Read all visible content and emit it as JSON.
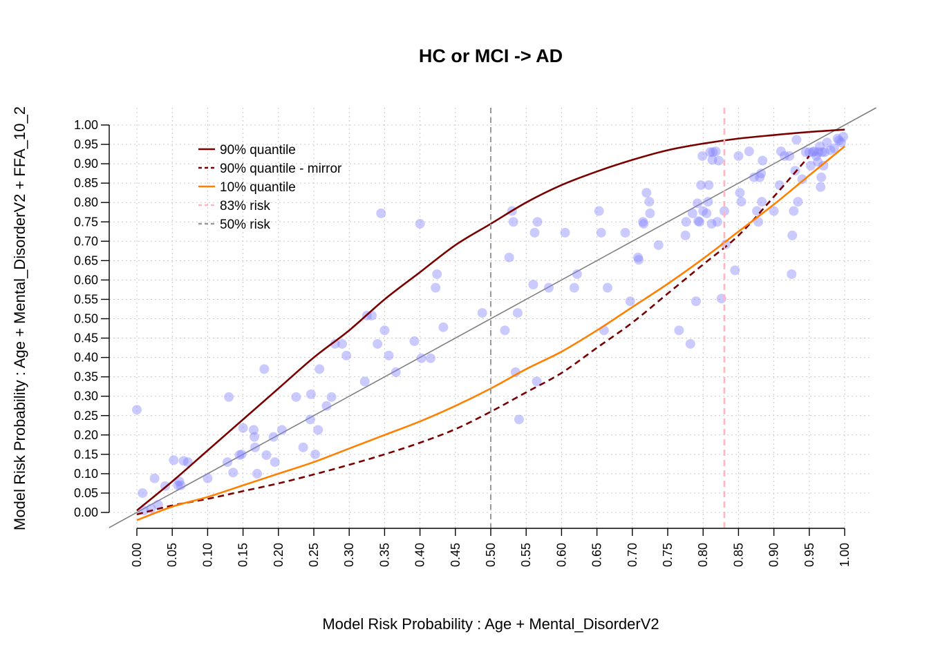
{
  "chart_data": {
    "type": "scatter",
    "title": "HC or MCI -> AD",
    "xlabel": "Model Risk Probability : Age + Mental_DisorderV2",
    "ylabel": "Model Risk Probability : Age + Mental_DisorderV2 + FFA_10_2",
    "xlim": [
      0,
      1
    ],
    "ylim": [
      0,
      1
    ],
    "x_ticks": [
      "0.00",
      "0.05",
      "0.10",
      "0.15",
      "0.20",
      "0.25",
      "0.30",
      "0.35",
      "0.40",
      "0.45",
      "0.50",
      "0.55",
      "0.60",
      "0.65",
      "0.70",
      "0.75",
      "0.80",
      "0.85",
      "0.90",
      "0.95",
      "1.00"
    ],
    "y_ticks": [
      "0.00",
      "0.05",
      "0.10",
      "0.15",
      "0.20",
      "0.25",
      "0.30",
      "0.35",
      "0.40",
      "0.45",
      "0.50",
      "0.55",
      "0.60",
      "0.65",
      "0.70",
      "0.75",
      "0.80",
      "0.85",
      "0.90",
      "0.95",
      "1.00"
    ],
    "grid": true,
    "legend_position": "top-left",
    "legend": [
      {
        "label": "90% quantile",
        "color": "#7a0000",
        "dash": "solid"
      },
      {
        "label": "90% quantile - mirror",
        "color": "#7a0000",
        "dash": "dashed"
      },
      {
        "label": "10% quantile",
        "color": "#ff8000",
        "dash": "solid"
      },
      {
        "label": "83% risk",
        "color": "#ffb6c1",
        "dash": "dashed"
      },
      {
        "label": "50% risk",
        "color": "#999999",
        "dash": "dashed"
      }
    ],
    "colors": {
      "points": "#8080ff",
      "q90": "#7a0000",
      "q10": "#ff8000",
      "identity": "#808080",
      "risk83": "#ffb6c1",
      "risk50": "#999999"
    },
    "reference_lines": {
      "risk83": 0.83,
      "risk50": 0.5
    },
    "series": [
      {
        "name": "90% quantile",
        "x": [
          0,
          0.05,
          0.1,
          0.15,
          0.2,
          0.25,
          0.3,
          0.35,
          0.4,
          0.45,
          0.5,
          0.55,
          0.6,
          0.65,
          0.7,
          0.75,
          0.8,
          0.85,
          0.9,
          0.95,
          1.0
        ],
        "y": [
          0.005,
          0.08,
          0.16,
          0.24,
          0.32,
          0.4,
          0.47,
          0.55,
          0.62,
          0.69,
          0.745,
          0.8,
          0.845,
          0.88,
          0.91,
          0.935,
          0.952,
          0.965,
          0.974,
          0.982,
          0.988
        ]
      },
      {
        "name": "90% quantile - mirror",
        "x": [
          0,
          0.05,
          0.1,
          0.15,
          0.2,
          0.25,
          0.3,
          0.35,
          0.4,
          0.45,
          0.5,
          0.55,
          0.6,
          0.65,
          0.7,
          0.75,
          0.8,
          0.85,
          0.9,
          0.95
        ],
        "y": [
          -0.005,
          0.018,
          0.035,
          0.055,
          0.075,
          0.098,
          0.123,
          0.15,
          0.18,
          0.215,
          0.26,
          0.31,
          0.36,
          0.425,
          0.49,
          0.565,
          0.64,
          0.715,
          0.815,
          0.92
        ]
      },
      {
        "name": "10% quantile",
        "x": [
          0,
          0.05,
          0.1,
          0.15,
          0.2,
          0.25,
          0.3,
          0.35,
          0.4,
          0.45,
          0.5,
          0.55,
          0.6,
          0.65,
          0.7,
          0.75,
          0.8,
          0.85,
          0.9,
          0.95,
          1.0
        ],
        "y": [
          -0.02,
          0.015,
          0.04,
          0.07,
          0.1,
          0.13,
          0.165,
          0.2,
          0.235,
          0.275,
          0.32,
          0.37,
          0.415,
          0.47,
          0.53,
          0.59,
          0.655,
          0.725,
          0.795,
          0.87,
          0.945
        ]
      }
    ],
    "points": [
      [
        0.0,
        0.265
      ],
      [
        0.008,
        0.05
      ],
      [
        0.01,
        0.005
      ],
      [
        0.02,
        0.01
      ],
      [
        0.025,
        0.088
      ],
      [
        0.03,
        0.02
      ],
      [
        0.04,
        0.068
      ],
      [
        0.052,
        0.135
      ],
      [
        0.058,
        0.07
      ],
      [
        0.06,
        0.08
      ],
      [
        0.062,
        0.07
      ],
      [
        0.066,
        0.133
      ],
      [
        0.072,
        0.13
      ],
      [
        0.1,
        0.088
      ],
      [
        0.128,
        0.13
      ],
      [
        0.13,
        0.298
      ],
      [
        0.136,
        0.103
      ],
      [
        0.145,
        0.148
      ],
      [
        0.148,
        0.15
      ],
      [
        0.15,
        0.218
      ],
      [
        0.165,
        0.213
      ],
      [
        0.166,
        0.195
      ],
      [
        0.167,
        0.168
      ],
      [
        0.17,
        0.1
      ],
      [
        0.18,
        0.37
      ],
      [
        0.183,
        0.148
      ],
      [
        0.193,
        0.195
      ],
      [
        0.195,
        0.13
      ],
      [
        0.205,
        0.213
      ],
      [
        0.225,
        0.298
      ],
      [
        0.235,
        0.168
      ],
      [
        0.245,
        0.24
      ],
      [
        0.246,
        0.305
      ],
      [
        0.252,
        0.15
      ],
      [
        0.256,
        0.213
      ],
      [
        0.258,
        0.37
      ],
      [
        0.268,
        0.275
      ],
      [
        0.275,
        0.298
      ],
      [
        0.28,
        0.435
      ],
      [
        0.29,
        0.435
      ],
      [
        0.296,
        0.405
      ],
      [
        0.322,
        0.338
      ],
      [
        0.325,
        0.508
      ],
      [
        0.332,
        0.508
      ],
      [
        0.34,
        0.435
      ],
      [
        0.345,
        0.772
      ],
      [
        0.35,
        0.47
      ],
      [
        0.356,
        0.405
      ],
      [
        0.366,
        0.362
      ],
      [
        0.392,
        0.442
      ],
      [
        0.4,
        0.745
      ],
      [
        0.402,
        0.398
      ],
      [
        0.415,
        0.398
      ],
      [
        0.422,
        0.58
      ],
      [
        0.424,
        0.615
      ],
      [
        0.433,
        0.478
      ],
      [
        0.488,
        0.515
      ],
      [
        0.52,
        0.47
      ],
      [
        0.526,
        0.658
      ],
      [
        0.53,
        0.778
      ],
      [
        0.532,
        0.75
      ],
      [
        0.535,
        0.362
      ],
      [
        0.538,
        0.515
      ],
      [
        0.54,
        0.24
      ],
      [
        0.56,
        0.588
      ],
      [
        0.562,
        0.722
      ],
      [
        0.565,
        0.338
      ],
      [
        0.566,
        0.75
      ],
      [
        0.582,
        0.58
      ],
      [
        0.605,
        0.722
      ],
      [
        0.618,
        0.58
      ],
      [
        0.622,
        0.615
      ],
      [
        0.653,
        0.778
      ],
      [
        0.656,
        0.722
      ],
      [
        0.66,
        0.47
      ],
      [
        0.665,
        0.58
      ],
      [
        0.69,
        0.722
      ],
      [
        0.697,
        0.545
      ],
      [
        0.708,
        0.658
      ],
      [
        0.709,
        0.652
      ],
      [
        0.715,
        0.75
      ],
      [
        0.716,
        0.745
      ],
      [
        0.72,
        0.825
      ],
      [
        0.724,
        0.802
      ],
      [
        0.725,
        0.772
      ],
      [
        0.737,
        0.69
      ],
      [
        0.766,
        0.47
      ],
      [
        0.775,
        0.715
      ],
      [
        0.776,
        0.75
      ],
      [
        0.782,
        0.435
      ],
      [
        0.785,
        0.772
      ],
      [
        0.79,
        0.545
      ],
      [
        0.792,
        0.798
      ],
      [
        0.793,
        0.752
      ],
      [
        0.795,
        0.75
      ],
      [
        0.797,
        0.845
      ],
      [
        0.799,
        0.92
      ],
      [
        0.8,
        0.778
      ],
      [
        0.805,
        0.772
      ],
      [
        0.807,
        0.802
      ],
      [
        0.808,
        0.845
      ],
      [
        0.81,
        0.93
      ],
      [
        0.812,
        0.745
      ],
      [
        0.813,
        0.91
      ],
      [
        0.814,
        0.93
      ],
      [
        0.818,
        0.932
      ],
      [
        0.82,
        0.75
      ],
      [
        0.822,
        0.908
      ],
      [
        0.826,
        0.552
      ],
      [
        0.83,
        0.778
      ],
      [
        0.832,
        0.692
      ],
      [
        0.845,
        0.625
      ],
      [
        0.85,
        0.92
      ],
      [
        0.852,
        0.825
      ],
      [
        0.854,
        0.802
      ],
      [
        0.865,
        0.932
      ],
      [
        0.872,
        0.865
      ],
      [
        0.876,
        0.778
      ],
      [
        0.878,
        0.75
      ],
      [
        0.88,
        0.865
      ],
      [
        0.882,
        0.875
      ],
      [
        0.883,
        0.802
      ],
      [
        0.884,
        0.908
      ],
      [
        0.9,
        0.778
      ],
      [
        0.908,
        0.845
      ],
      [
        0.91,
        0.932
      ],
      [
        0.915,
        0.92
      ],
      [
        0.922,
        0.92
      ],
      [
        0.925,
        0.615
      ],
      [
        0.926,
        0.715
      ],
      [
        0.928,
        0.778
      ],
      [
        0.93,
        0.882
      ],
      [
        0.932,
        0.962
      ],
      [
        0.934,
        0.802
      ],
      [
        0.94,
        0.86
      ],
      [
        0.945,
        0.93
      ],
      [
        0.95,
        0.93
      ],
      [
        0.952,
        0.895
      ],
      [
        0.955,
        0.93
      ],
      [
        0.957,
        0.932
      ],
      [
        0.96,
        0.92
      ],
      [
        0.962,
        0.905
      ],
      [
        0.963,
        0.93
      ],
      [
        0.965,
        0.945
      ],
      [
        0.966,
        0.84
      ],
      [
        0.967,
        0.865
      ],
      [
        0.968,
        0.93
      ],
      [
        0.97,
        0.895
      ],
      [
        0.972,
        0.93
      ],
      [
        0.975,
        0.955
      ],
      [
        0.98,
        0.935
      ],
      [
        0.985,
        0.94
      ],
      [
        0.99,
        0.965
      ],
      [
        0.992,
        0.96
      ],
      [
        0.995,
        0.955
      ],
      [
        0.998,
        0.97
      ]
    ]
  }
}
